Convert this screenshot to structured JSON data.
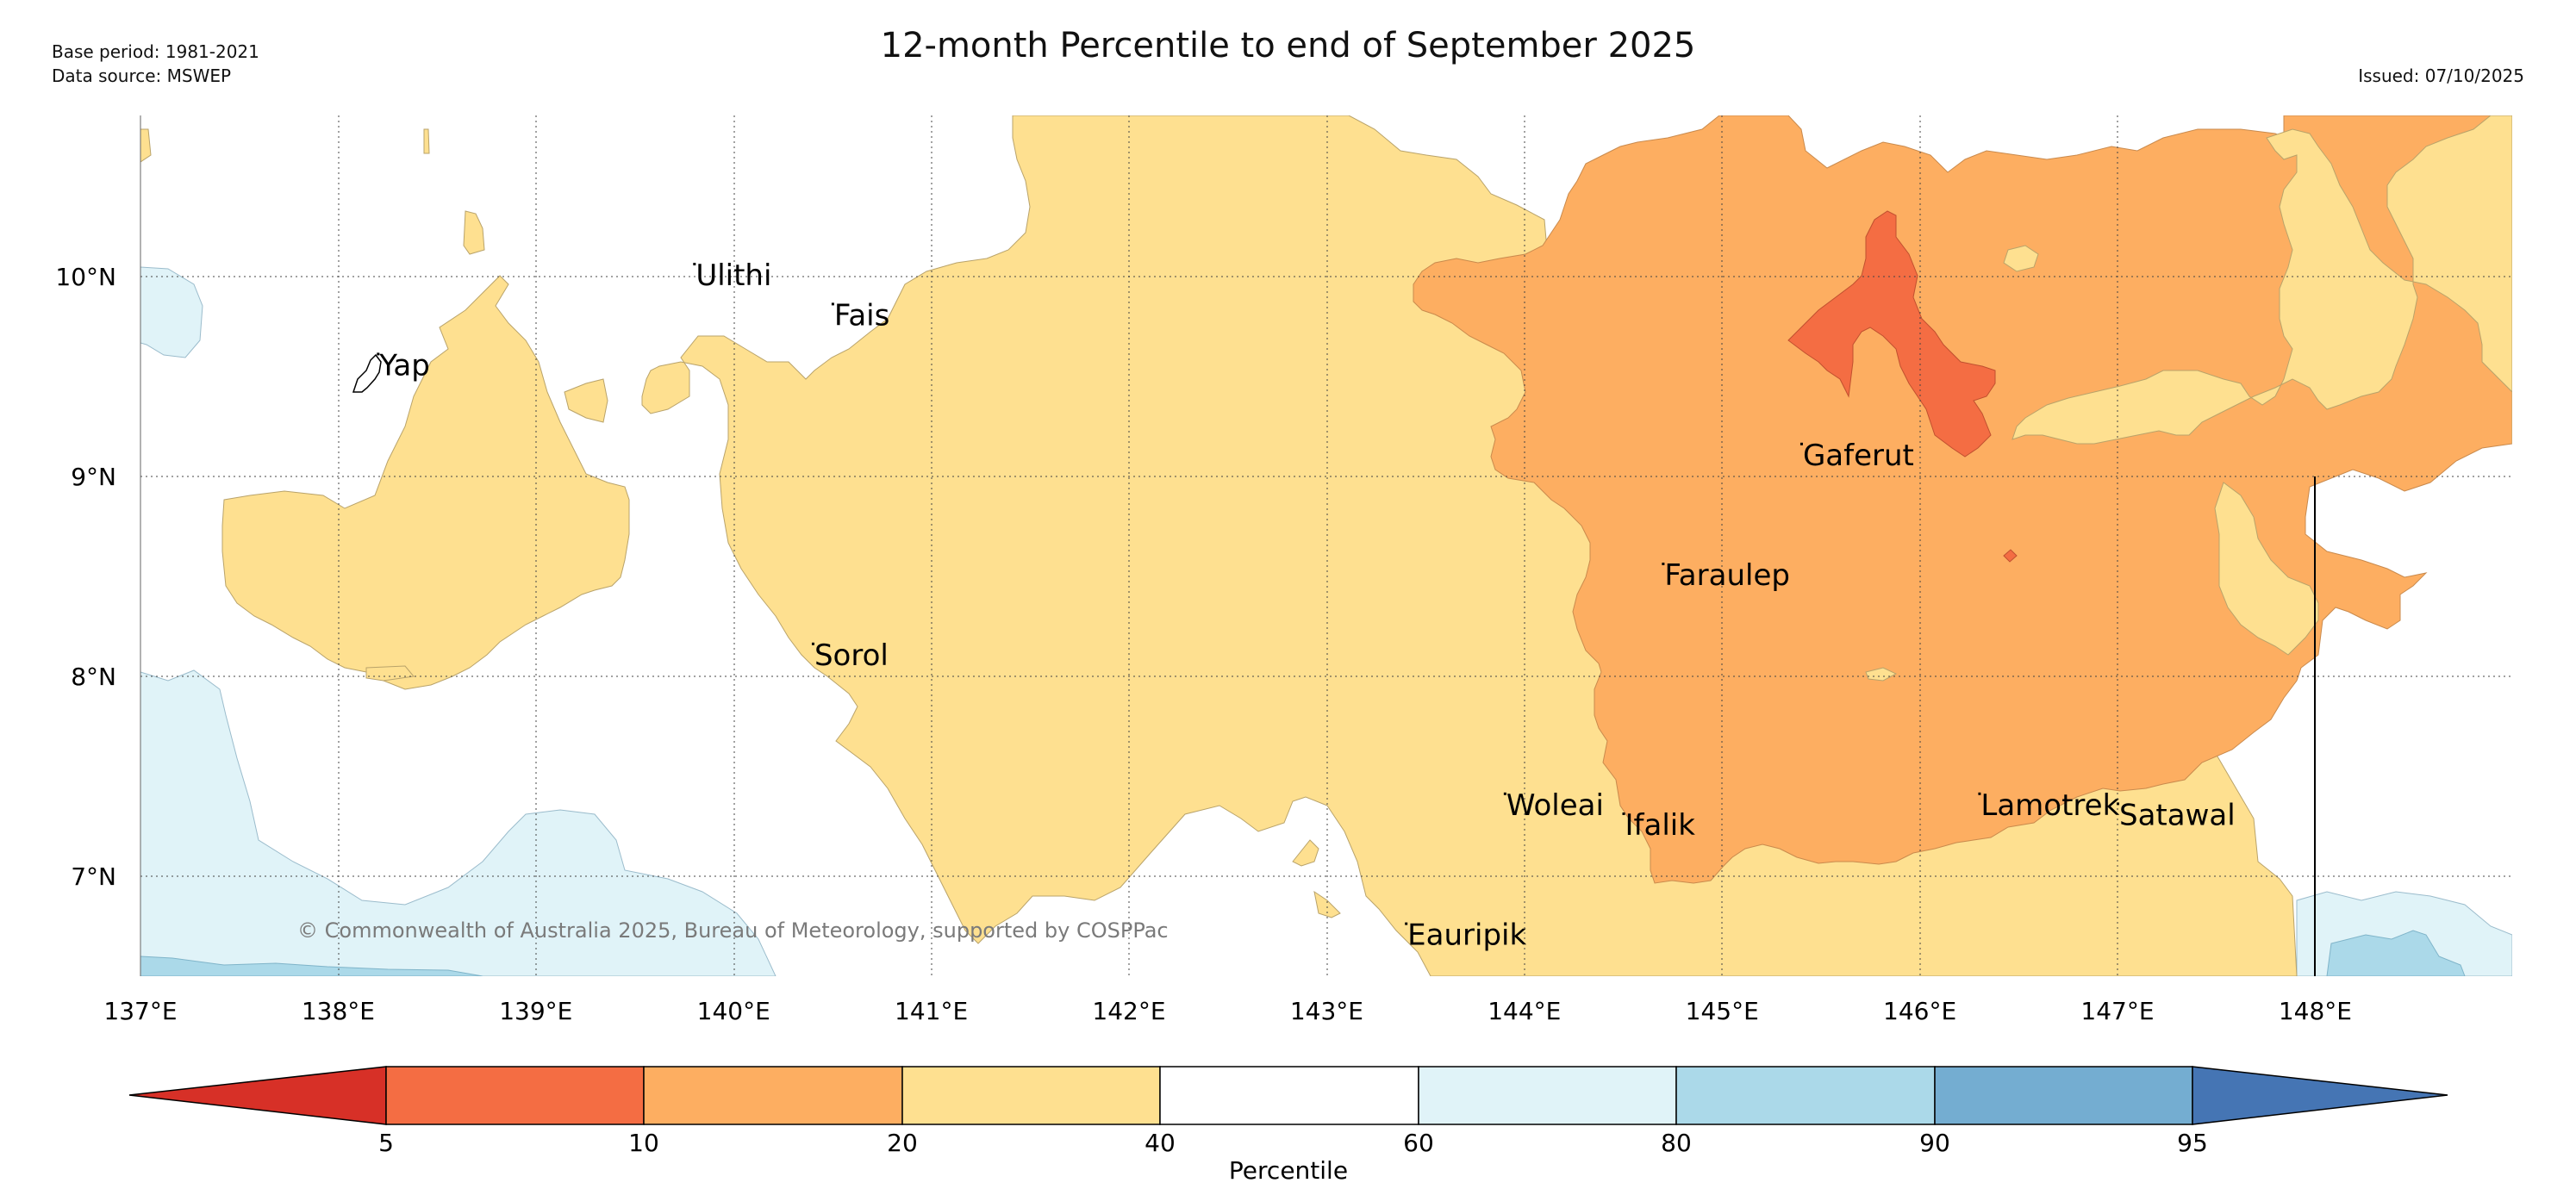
{
  "header": {
    "title": "12-month Percentile to end of September 2025",
    "base_period": "Base period: 1981-2021",
    "data_source": "Data source: MSWEP",
    "issued": "Issued: 07/10/2025"
  },
  "map": {
    "copyright": "© Commonwealth of Australia 2025, Bureau of Meteorology, supported by COSPPac",
    "lon_labels": [
      "137°E",
      "138°E",
      "139°E",
      "140°E",
      "141°E",
      "142°E",
      "143°E",
      "144°E",
      "145°E",
      "146°E",
      "147°E",
      "148°E"
    ],
    "lat_labels": [
      "10°N",
      "9°N",
      "8°N",
      "7°N"
    ],
    "lon_range": [
      137,
      149
    ],
    "lat_range": [
      6.5,
      10.8
    ],
    "places": [
      {
        "name": "Ulithi",
        "lon": 139.8,
        "lat": 10.0
      },
      {
        "name": "Fais",
        "lon": 140.5,
        "lat": 9.8
      },
      {
        "name": "Yap",
        "lon": 138.2,
        "lat": 9.55
      },
      {
        "name": "Gaferut",
        "lon": 145.4,
        "lat": 9.1
      },
      {
        "name": "Faraulep",
        "lon": 144.7,
        "lat": 8.5
      },
      {
        "name": "Sorol",
        "lon": 140.4,
        "lat": 8.1
      },
      {
        "name": "Woleai",
        "lon": 143.9,
        "lat": 7.35
      },
      {
        "name": "Ifalik",
        "lon": 144.5,
        "lat": 7.25
      },
      {
        "name": "Lamotrek",
        "lon": 146.3,
        "lat": 7.35
      },
      {
        "name": "Satawal",
        "lon": 147.0,
        "lat": 7.3
      },
      {
        "name": "Eauripik",
        "lon": 143.4,
        "lat": 6.7
      }
    ]
  },
  "legend": {
    "title": "Percentile",
    "ticks": [
      "5",
      "10",
      "20",
      "40",
      "60",
      "80",
      "90",
      "95"
    ],
    "colors": [
      "#d73027",
      "#f46d43",
      "#fdae61",
      "#fee090",
      "#ffffff",
      "#e0f3f8",
      "#abd9e9",
      "#74add1",
      "#4575b4"
    ]
  }
}
